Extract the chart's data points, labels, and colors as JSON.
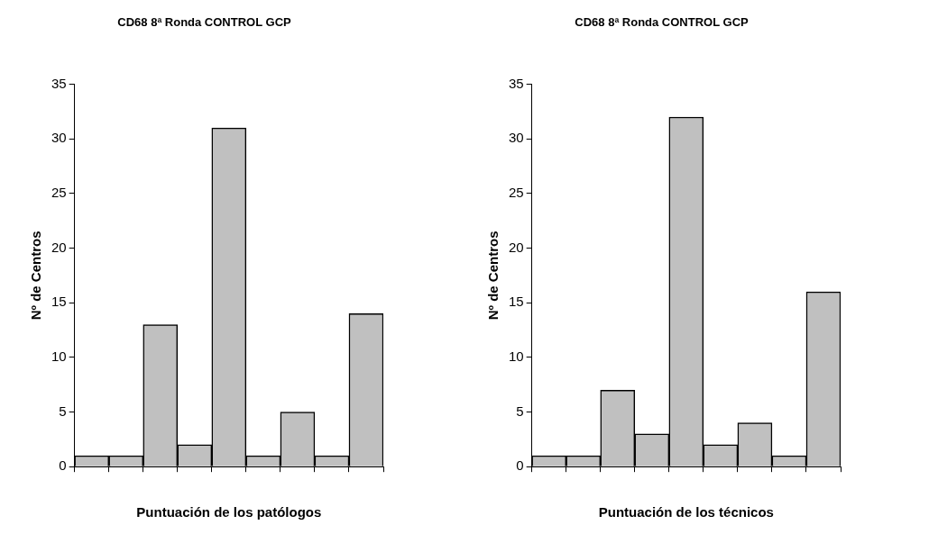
{
  "chart_data": [
    {
      "type": "bar",
      "title": "CD68 8ª Ronda CONTROL GCP",
      "xlabel": "Puntuación de los patólogos",
      "ylabel": "Nº de Centros",
      "categories": [
        null,
        null,
        null,
        null,
        null,
        null,
        null,
        null,
        null
      ],
      "values": [
        1,
        1,
        13,
        2,
        31,
        1,
        5,
        1,
        14
      ],
      "color": "#c0c0c0",
      "ylim": [
        0,
        35
      ],
      "yticks": [
        0,
        5,
        10,
        15,
        20,
        25,
        30,
        35
      ],
      "grid": false,
      "legend": false
    },
    {
      "type": "bar",
      "title": "CD68 8ª Ronda CONTROL GCP",
      "xlabel": "Puntuación de los técnicos",
      "ylabel": "Nº de Centros",
      "categories": [
        null,
        null,
        null,
        null,
        null,
        null,
        null,
        null,
        null
      ],
      "values": [
        1,
        1,
        7,
        3,
        32,
        2,
        4,
        1,
        16
      ],
      "color": "#c0c0c0",
      "ylim": [
        0,
        35
      ],
      "yticks": [
        0,
        5,
        10,
        15,
        20,
        25,
        30,
        35
      ],
      "grid": false,
      "legend": false
    }
  ]
}
